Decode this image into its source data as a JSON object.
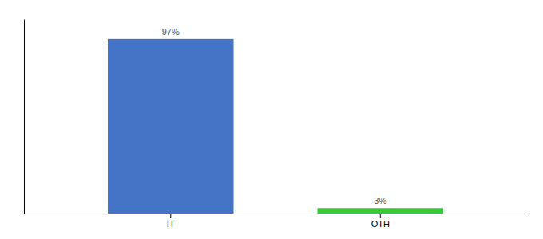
{
  "chart_data": {
    "type": "bar",
    "categories": [
      "IT",
      "OTH"
    ],
    "values": [
      97,
      3
    ],
    "value_labels": [
      "97%",
      "3%"
    ],
    "colors": [
      "#4472c4",
      "#33cc33"
    ],
    "ylim": [
      0,
      108
    ],
    "data_labels": true,
    "tick_labels": "x"
  }
}
